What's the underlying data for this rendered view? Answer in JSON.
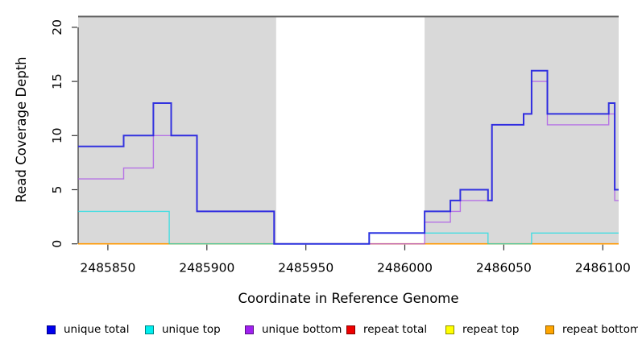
{
  "chart_data": {
    "type": "line",
    "step": true,
    "title": "",
    "xlabel": "Coordinate in Reference Genome",
    "ylabel": "Read Coverage Depth",
    "xlim": [
      2485835,
      2486108
    ],
    "ylim": [
      0,
      21
    ],
    "x_ticks": [
      2485850,
      2485900,
      2485950,
      2486000,
      2486050,
      2486100
    ],
    "y_ticks": [
      0,
      5,
      10,
      15,
      20
    ],
    "grid": false,
    "panel_color": "#D9D9D9",
    "top_rule_color": "#666666",
    "axis_color": "#333333",
    "shaded_regions": [
      [
        2485835,
        2485935
      ],
      [
        2486010,
        2486108
      ]
    ],
    "series": [
      {
        "name": "repeat total",
        "color": "#DD0000",
        "opacity": 1,
        "width": 1.2,
        "points": [
          [
            2485835,
            0
          ]
        ],
        "end": 2486108
      },
      {
        "name": "repeat top",
        "color": "#FFFF00",
        "opacity": 1,
        "width": 1.2,
        "points": [
          [
            2485835,
            0
          ]
        ],
        "end": 2486108
      },
      {
        "name": "repeat bottom",
        "color": "#FF9800",
        "opacity": 1,
        "width": 1.6,
        "points": [
          [
            2485835,
            0
          ]
        ],
        "end": 2486108
      },
      {
        "name": "unique bottom",
        "color": "#A84FE8",
        "opacity": 0.75,
        "width": 1.4,
        "points": [
          [
            2485835,
            6
          ],
          [
            2485858,
            7
          ],
          [
            2485873,
            10
          ],
          [
            2485895,
            3
          ],
          [
            2485934,
            0
          ],
          [
            2486010,
            2
          ],
          [
            2486023,
            3
          ],
          [
            2486028,
            4
          ],
          [
            2486044,
            11
          ],
          [
            2486060,
            12
          ],
          [
            2486064,
            15
          ],
          [
            2486072,
            11
          ],
          [
            2486103,
            12
          ],
          [
            2486106,
            4
          ]
        ],
        "end": 2486108
      },
      {
        "name": "unique top",
        "color": "#00DFE4",
        "opacity": 0.68,
        "width": 1.4,
        "points": [
          [
            2485835,
            3
          ],
          [
            2485881,
            0
          ],
          [
            2485982,
            1
          ],
          [
            2486042,
            0
          ],
          [
            2486064,
            1
          ]
        ],
        "end": 2486108
      },
      {
        "name": "unique total",
        "color": "#2424DF",
        "opacity": 0.92,
        "width": 2,
        "points": [
          [
            2485835,
            9
          ],
          [
            2485858,
            10
          ],
          [
            2485873,
            13
          ],
          [
            2485882,
            10
          ],
          [
            2485895,
            3
          ],
          [
            2485934,
            0
          ],
          [
            2485982,
            1
          ],
          [
            2486010,
            3
          ],
          [
            2486023,
            4
          ],
          [
            2486028,
            5
          ],
          [
            2486042,
            4
          ],
          [
            2486044,
            11
          ],
          [
            2486060,
            12
          ],
          [
            2486064,
            16
          ],
          [
            2486072,
            12
          ],
          [
            2486103,
            13
          ],
          [
            2486106,
            5
          ]
        ],
        "end": 2486108
      }
    ]
  },
  "legend": {
    "items": [
      {
        "label": "unique total",
        "color": "#0000EE"
      },
      {
        "label": "unique top",
        "color": "#00EEEE"
      },
      {
        "label": "unique bottom",
        "color": "#A020F0"
      },
      {
        "label": "repeat total",
        "color": "#EE0000"
      },
      {
        "label": "repeat top",
        "color": "#FFFF00"
      },
      {
        "label": "repeat bottom",
        "color": "#FFA500"
      }
    ]
  }
}
